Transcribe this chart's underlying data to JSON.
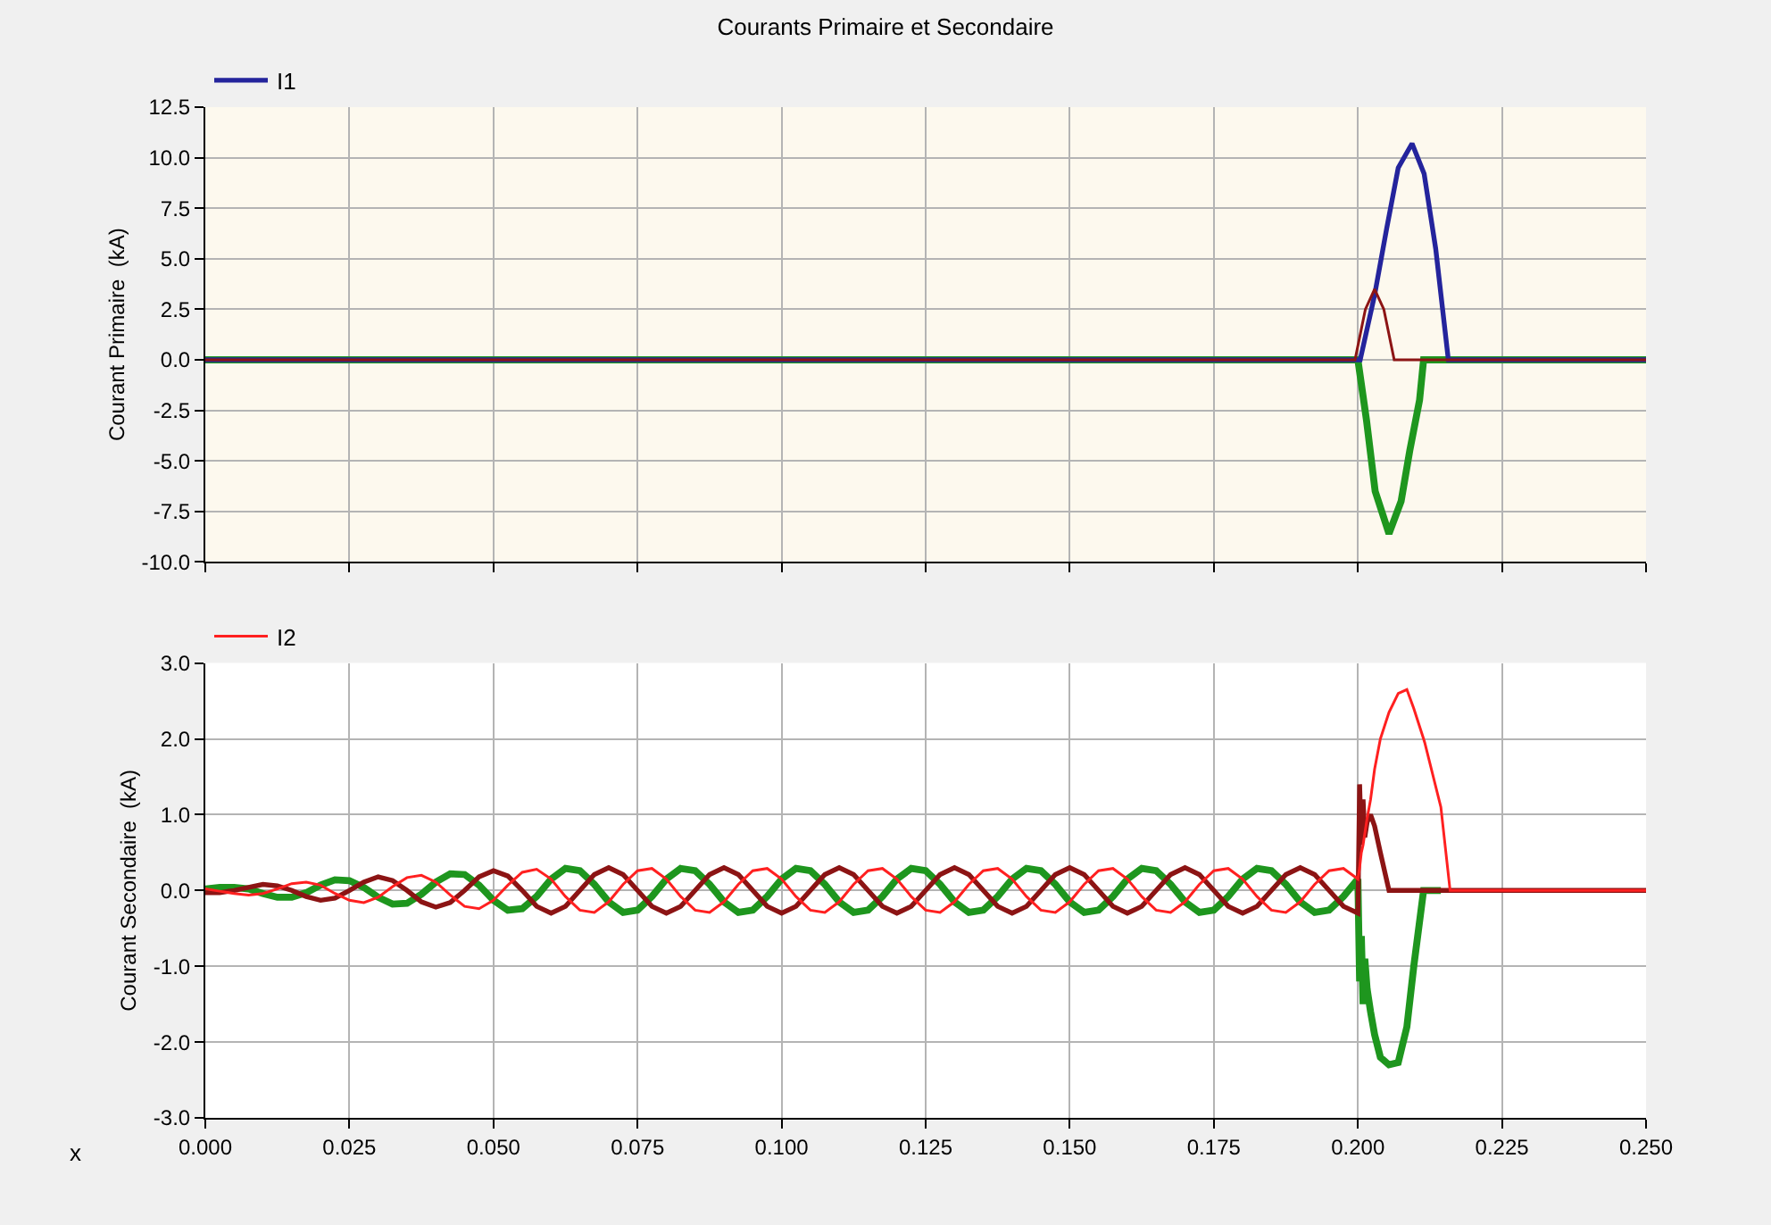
{
  "chart_data": [
    {
      "type": "line",
      "title": "Courants Primaire et Secondaire",
      "ylabel": "Courant Primaire  (kA)",
      "legend": "top left",
      "grid": true,
      "marker": "none",
      "line_style": "solid",
      "tick_labels": "y",
      "xlim": [
        0,
        0.25
      ],
      "xticks": [
        {
          "value": 0,
          "label": null
        },
        {
          "value": 0.025,
          "label": null
        },
        {
          "value": 0.05,
          "label": null
        },
        {
          "value": 0.075,
          "label": null
        },
        {
          "value": 0.1,
          "label": null
        },
        {
          "value": 0.125,
          "label": null
        },
        {
          "value": 0.15,
          "label": null
        },
        {
          "value": 0.175,
          "label": null
        },
        {
          "value": 0.2,
          "label": null
        },
        {
          "value": 0.225,
          "label": null
        },
        {
          "value": 0.25,
          "label": null
        }
      ],
      "ylim": [
        -10,
        12.5
      ],
      "yticks": [
        {
          "value": -10,
          "label": "-10.0"
        },
        {
          "value": -7.5,
          "label": "-7.5"
        },
        {
          "value": -5,
          "label": "-5.0"
        },
        {
          "value": -2.5,
          "label": "-2.5"
        },
        {
          "value": 0,
          "label": "0.0"
        },
        {
          "value": 2.5,
          "label": "2.5"
        },
        {
          "value": 5,
          "label": "5.0"
        },
        {
          "value": 7.5,
          "label": "7.5"
        },
        {
          "value": 10,
          "label": "10.0"
        },
        {
          "value": 12.5,
          "label": "12.5"
        }
      ],
      "series": [
        {
          "color": "#1e961e",
          "x": [
            0,
            0.2,
            0.2015,
            0.203,
            0.2054,
            0.2075,
            0.209,
            0.2107,
            0.2114,
            0.25
          ],
          "values": [
            0,
            0,
            -3,
            -6.5,
            -8.6,
            -7,
            -4.5,
            -2,
            0,
            0
          ]
        },
        {
          "name": "I1",
          "color": "#24249c",
          "x": [
            0,
            0.2004,
            0.2029,
            0.205,
            0.207,
            0.2094,
            0.2115,
            0.2135,
            0.2157,
            0.25
          ],
          "values": [
            0,
            0,
            3.2,
            6.5,
            9.5,
            10.7,
            9.2,
            5.5,
            0,
            0
          ]
        },
        {
          "color": "#8c1414",
          "x": [
            0,
            0.1995,
            0.2013,
            0.2029,
            0.2045,
            0.2063,
            0.25
          ],
          "values": [
            0,
            0,
            2.5,
            3.5,
            2.5,
            0,
            0
          ]
        }
      ]
    },
    {
      "type": "line",
      "ylabel": "Courant Secondaire  (kA)",
      "xlabel": "x",
      "legend": "top left",
      "grid": true,
      "marker": "none",
      "line_style": "solid",
      "xlim": [
        0,
        0.25
      ],
      "xticks": [
        {
          "value": 0,
          "label": "0.000"
        },
        {
          "value": 0.025,
          "label": "0.025"
        },
        {
          "value": 0.05,
          "label": "0.050"
        },
        {
          "value": 0.075,
          "label": "0.075"
        },
        {
          "value": 0.1,
          "label": "0.100"
        },
        {
          "value": 0.125,
          "label": "0.125"
        },
        {
          "value": 0.15,
          "label": "0.150"
        },
        {
          "value": 0.175,
          "label": "0.175"
        },
        {
          "value": 0.2,
          "label": "0.200"
        },
        {
          "value": 0.225,
          "label": "0.225"
        },
        {
          "value": 0.25,
          "label": "0.250"
        }
      ],
      "ylim": [
        -3,
        3
      ],
      "yticks": [
        {
          "value": -3,
          "label": "-3.0"
        },
        {
          "value": -2,
          "label": "-2.0"
        },
        {
          "value": -1,
          "label": "-1.0"
        },
        {
          "value": 0,
          "label": "0.0"
        },
        {
          "value": 1,
          "label": "1.0"
        },
        {
          "value": 2,
          "label": "2.0"
        },
        {
          "value": 3,
          "label": "3.0"
        }
      ],
      "x": [
        0,
        0.0025,
        0.005,
        0.0075,
        0.01,
        0.0125,
        0.015,
        0.0175,
        0.02,
        0.0225,
        0.025,
        0.0275,
        0.03,
        0.0325,
        0.035,
        0.0375,
        0.04,
        0.0425,
        0.045,
        0.0475,
        0.05,
        0.0525,
        0.055,
        0.0575,
        0.06,
        0.0625,
        0.065,
        0.0675,
        0.07,
        0.0725,
        0.075,
        0.0775,
        0.08,
        0.0825,
        0.085,
        0.0875,
        0.09,
        0.0925,
        0.095,
        0.0975,
        0.1,
        0.1025,
        0.105,
        0.1075,
        0.11,
        0.1125,
        0.115,
        0.1175,
        0.12,
        0.1225,
        0.125,
        0.1275,
        0.13,
        0.1325,
        0.135,
        0.1375,
        0.14,
        0.1425,
        0.145,
        0.1475,
        0.15,
        0.1525,
        0.155,
        0.1575,
        0.16,
        0.1625,
        0.165,
        0.1675,
        0.17,
        0.1725,
        0.175,
        0.1775,
        0.18,
        0.1825,
        0.185,
        0.1875,
        0.19,
        0.1925,
        0.195,
        0.1975,
        0.2,
        0.2003,
        0.2006,
        0.2009,
        0.2012,
        0.2016,
        0.2022,
        0.2029,
        0.2039,
        0.2054,
        0.207,
        0.2085,
        0.2097,
        0.2114,
        0.2116,
        0.2144,
        0.216,
        0.25
      ],
      "series": [
        {
          "color": "#1e961e",
          "values": [
            0.02,
            0.04,
            0.04,
            0.02,
            -0.04,
            -0.09,
            -0.09,
            -0.03,
            0.07,
            0.14,
            0.13,
            0.04,
            -0.09,
            -0.18,
            -0.17,
            -0.05,
            0.11,
            0.22,
            0.21,
            0.07,
            -0.13,
            -0.26,
            -0.24,
            -0.08,
            0.15,
            0.29,
            0.26,
            0.08,
            -0.15,
            -0.29,
            -0.26,
            -0.08,
            0.15,
            0.29,
            0.26,
            0.08,
            -0.15,
            -0.29,
            -0.26,
            -0.08,
            0.15,
            0.29,
            0.26,
            0.08,
            -0.15,
            -0.29,
            -0.26,
            -0.08,
            0.15,
            0.29,
            0.26,
            0.08,
            -0.15,
            -0.29,
            -0.26,
            -0.08,
            0.15,
            0.29,
            0.26,
            0.08,
            -0.15,
            -0.29,
            -0.26,
            -0.08,
            0.15,
            0.29,
            0.26,
            0.08,
            -0.15,
            -0.29,
            -0.26,
            -0.08,
            0.15,
            0.29,
            0.26,
            0.08,
            -0.15,
            -0.29,
            -0.26,
            -0.08,
            0.15,
            -1.2,
            -0.6,
            -1.5,
            -0.9,
            -1.3,
            -1.6,
            -1.9,
            -2.2,
            -2.3,
            -2.27,
            -1.8,
            -1,
            0,
            0,
            0,
            null,
            null
          ]
        },
        {
          "color": "#8c1414",
          "values": [
            -0.03,
            -0.03,
            0,
            0.04,
            0.08,
            0.06,
            0,
            -0.08,
            -0.13,
            -0.1,
            0,
            0.11,
            0.18,
            0.13,
            0,
            -0.15,
            -0.22,
            -0.16,
            0,
            0.18,
            0.26,
            0.19,
            0,
            -0.21,
            -0.3,
            -0.21,
            0,
            0.21,
            0.3,
            0.21,
            0,
            -0.21,
            -0.3,
            -0.21,
            0,
            0.21,
            0.3,
            0.21,
            0,
            -0.21,
            -0.3,
            -0.21,
            0,
            0.21,
            0.3,
            0.21,
            0,
            -0.21,
            -0.3,
            -0.21,
            0,
            0.21,
            0.3,
            0.21,
            0,
            -0.21,
            -0.3,
            -0.21,
            0,
            0.21,
            0.3,
            0.21,
            0,
            -0.21,
            -0.3,
            -0.21,
            0,
            0.21,
            0.3,
            0.21,
            0,
            -0.21,
            -0.3,
            -0.21,
            0,
            0.21,
            0.3,
            0.21,
            0,
            -0.21,
            -0.3,
            1.4,
            0.6,
            1.2,
            0.7,
            0.9,
            1.0,
            0.85,
            0.5,
            0,
            0,
            0,
            0,
            0,
            0,
            0,
            0,
            0
          ]
        },
        {
          "name": "I2",
          "color": "#ff2020",
          "values": [
            0.02,
            -0.01,
            -0.04,
            -0.06,
            -0.04,
            0.02,
            0.09,
            0.11,
            0.07,
            -0.04,
            -0.13,
            -0.16,
            -0.09,
            0.05,
            0.17,
            0.2,
            0.11,
            -0.06,
            -0.21,
            -0.24,
            -0.13,
            0.07,
            0.24,
            0.28,
            0.15,
            -0.08,
            -0.26,
            -0.29,
            -0.15,
            0.08,
            0.26,
            0.29,
            0.15,
            -0.08,
            -0.26,
            -0.29,
            -0.15,
            0.08,
            0.26,
            0.29,
            0.15,
            -0.08,
            -0.26,
            -0.29,
            -0.15,
            0.08,
            0.26,
            0.29,
            0.15,
            -0.08,
            -0.26,
            -0.29,
            -0.15,
            0.08,
            0.26,
            0.29,
            0.15,
            -0.08,
            -0.26,
            -0.29,
            -0.15,
            0.08,
            0.26,
            0.29,
            0.15,
            -0.08,
            -0.26,
            -0.29,
            -0.15,
            0.08,
            0.26,
            0.29,
            0.15,
            -0.08,
            -0.26,
            -0.29,
            -0.15,
            0.08,
            0.26,
            0.29,
            0.15,
            0.3,
            0.5,
            0.6,
            0.75,
            0.95,
            1.2,
            1.6,
            2.0,
            2.35,
            2.6,
            2.65,
            2.4,
            2.0,
            1.95,
            1.1,
            0,
            0
          ]
        }
      ]
    }
  ]
}
